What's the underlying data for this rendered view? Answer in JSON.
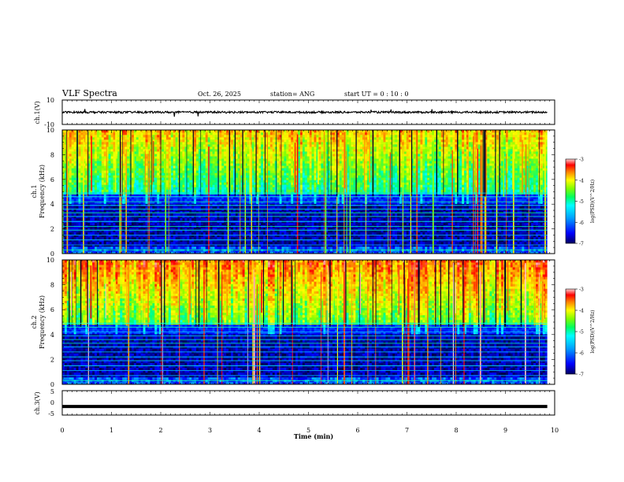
{
  "header": {
    "title": "VLF Spectra",
    "date": "Oct. 26, 2025",
    "station": "station= ANG",
    "start": "start  UT  =   0  : 10 : 0"
  },
  "colors": {
    "scale": [
      "#000080",
      "#0000ff",
      "#00a0ff",
      "#00ffff",
      "#00ff80",
      "#80ff00",
      "#ffff00",
      "#ff8000",
      "#ff0000",
      "#ffc8c8"
    ]
  },
  "chart_data": [
    {
      "type": "line",
      "panel": "ch1-waveform",
      "ylabel": "ch.1(V)",
      "ylim": [
        -10,
        10
      ],
      "yticks": [
        "10",
        "-10"
      ],
      "baseline_value": 0,
      "description_value_range": [
        -2,
        2
      ]
    },
    {
      "type": "heatmap",
      "panel": "ch1-spectrogram",
      "ylabel": "ch.1\nFrequency (kHz)",
      "ylabel_line1": "ch.1",
      "ylabel_line2": "Frequency (kHz)",
      "ylim": [
        0,
        10
      ],
      "yticks": [
        "0",
        "2",
        "4",
        "6",
        "8",
        "10"
      ],
      "colorbar": {
        "label": "log(PSD)(V^2/Hz)",
        "range": [
          -7,
          -3
        ],
        "ticks": [
          "-3",
          "-4",
          "-5",
          "-6",
          "-7"
        ]
      }
    },
    {
      "type": "heatmap",
      "panel": "ch2-spectrogram",
      "ylabel": "ch.2\nFrequency (kHz)",
      "ylabel_line1": "ch.2",
      "ylabel_line2": "Frequency (kHz)",
      "ylim": [
        0,
        10
      ],
      "yticks": [
        "0",
        "2",
        "4",
        "6",
        "8",
        "10"
      ],
      "colorbar": {
        "label": "log(PSD)(V^2/Hz)",
        "range": [
          -7,
          -3
        ],
        "ticks": [
          "-3",
          "-4",
          "-5",
          "-6",
          "-7"
        ]
      }
    },
    {
      "type": "line",
      "panel": "ch3-waveform",
      "ylabel": "ch.3(V)",
      "ylim": [
        -5,
        5
      ],
      "yticks": [
        "5",
        "0",
        "-5"
      ],
      "level_value": -1.5
    }
  ],
  "xaxis": {
    "label": "Time  (min)",
    "range": [
      0,
      10
    ],
    "ticks": [
      "0",
      "1",
      "2",
      "3",
      "4",
      "5",
      "6",
      "7",
      "8",
      "9",
      "10"
    ],
    "data_end": 9.85
  }
}
